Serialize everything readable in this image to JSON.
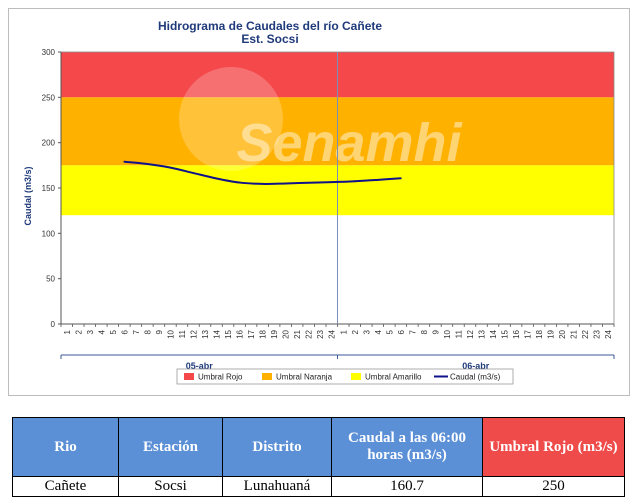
{
  "chart_data": {
    "type": "line",
    "title": "Hidrograma de Caudales  del río Cañete",
    "subtitle": "Est. Socsi",
    "ylabel": "Caudal  (m3/s)",
    "ylim": [
      0,
      300
    ],
    "yticks": [
      0,
      50,
      100,
      150,
      200,
      250,
      300
    ],
    "x_tick_labels": [
      "1",
      "2",
      "3",
      "4",
      "5",
      "6",
      "7",
      "8",
      "9",
      "10",
      "11",
      "12",
      "13",
      "14",
      "15",
      "16",
      "17",
      "18",
      "19",
      "20",
      "21",
      "22",
      "23",
      "24",
      "1",
      "2",
      "3",
      "4",
      "5",
      "6",
      "7",
      "8",
      "9",
      "10",
      "11",
      "12",
      "13",
      "14",
      "15",
      "16",
      "17",
      "18",
      "19",
      "20",
      "21",
      "22",
      "23",
      "24"
    ],
    "date_labels": [
      "05-abr",
      "06-abr"
    ],
    "thresholds": [
      {
        "name": "Umbral Rojo",
        "from": 250,
        "to": 300,
        "color": "#f5484a"
      },
      {
        "name": "Umbral Naranja",
        "from": 175,
        "to": 250,
        "color": "#ffb100"
      },
      {
        "name": "Umbral Amarillo",
        "from": 120,
        "to": 175,
        "color": "#ffff00"
      }
    ],
    "series": [
      {
        "name": "Caudal (m3/s)",
        "color": "#10128a",
        "x": [
          6,
          8,
          10,
          12,
          14,
          16,
          18,
          20,
          22,
          24,
          26,
          28,
          30
        ],
        "values": [
          179.0,
          176.5,
          172.5,
          166.5,
          160.5,
          156.0,
          154.5,
          155.0,
          155.8,
          156.5,
          157.5,
          159.0,
          160.7
        ]
      }
    ],
    "legend": [
      "Umbral Rojo",
      "Umbral Naranja",
      "Umbral Amarillo",
      "Caudal (m3/s)"
    ],
    "legend_position": "bottom",
    "watermark": "Senamhi"
  },
  "table": {
    "headers": [
      "Rio",
      "Estación",
      "Distrito",
      "Caudal a las 06:00 horas (m3/s)",
      "Umbral Rojo (m3/s)"
    ],
    "row": [
      "Cañete",
      "Socsi",
      "Lunahuaná",
      "160.7",
      "250"
    ]
  }
}
